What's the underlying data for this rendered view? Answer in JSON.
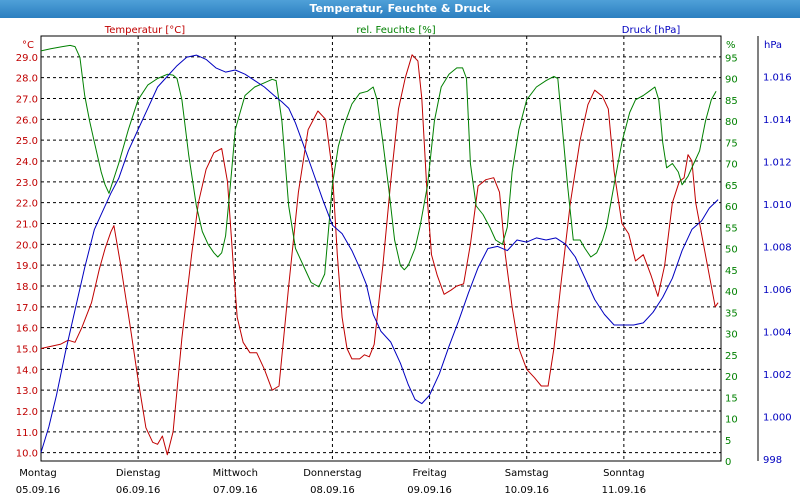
{
  "window": {
    "title": "Temperatur, Feuchte & Druck"
  },
  "chart_data": {
    "type": "line",
    "title": "Temperatur, Feuchte & Druck",
    "x_categories": [
      {
        "day": "Montag",
        "date": "05.09.16"
      },
      {
        "day": "Dienstag",
        "date": "06.09.16"
      },
      {
        "day": "Mittwoch",
        "date": "07.09.16"
      },
      {
        "day": "Donnerstag",
        "date": "08.09.16"
      },
      {
        "day": "Freitag",
        "date": "09.09.16"
      },
      {
        "day": "Samstag",
        "date": "10.09.16"
      },
      {
        "day": "Sonntag",
        "date": "11.09.16"
      }
    ],
    "x_unit": "days since Montag 05.09.16 00:00",
    "xlim": [
      0,
      7
    ],
    "grid": true,
    "axes": {
      "temp": {
        "label": "Temperatur [°C]",
        "unit": "°C",
        "ylim": [
          9.6,
          30.0
        ],
        "color": "#c00000",
        "ticks": [
          "10.0",
          "11.0",
          "12.0",
          "13.0",
          "14.0",
          "15.0",
          "16.0",
          "17.0",
          "18.0",
          "19.0",
          "20.0",
          "21.0",
          "22.0",
          "23.0",
          "24.0",
          "25.0",
          "26.0",
          "27.0",
          "28.0",
          "29.0"
        ]
      },
      "hum": {
        "label": "rel. Feuchte [%]",
        "unit": "%",
        "ylim": [
          0,
          100
        ],
        "color": "#008000",
        "ticks": [
          "0",
          "5",
          "10",
          "15",
          "20",
          "25",
          "30",
          "35",
          "40",
          "45",
          "50",
          "55",
          "60",
          "65",
          "70",
          "75",
          "80",
          "85",
          "90",
          "95"
        ]
      },
      "pres": {
        "label": "Druck [hPa]",
        "unit": "hPa",
        "ylim": [
          997.9,
          1017.9
        ],
        "color": "#0000c0",
        "ticks": [
          "998",
          "1.000",
          "1.002",
          "1.004",
          "1.006",
          "1.008",
          "1.010",
          "1.012",
          "1.014",
          "1.016"
        ]
      }
    },
    "series": [
      {
        "name": "Temperatur [°C]",
        "axis": "temp",
        "color": "#c00000",
        "points": [
          [
            0.0,
            15.0
          ],
          [
            0.2,
            15.2
          ],
          [
            0.28,
            15.4
          ],
          [
            0.35,
            15.3
          ],
          [
            0.42,
            16.0
          ],
          [
            0.52,
            17.2
          ],
          [
            0.6,
            18.8
          ],
          [
            0.66,
            19.8
          ],
          [
            0.72,
            20.6
          ],
          [
            0.75,
            20.9
          ],
          [
            0.82,
            19.0
          ],
          [
            0.92,
            16.0
          ],
          [
            1.0,
            13.5
          ],
          [
            1.08,
            11.2
          ],
          [
            1.15,
            10.5
          ],
          [
            1.2,
            10.4
          ],
          [
            1.25,
            10.8
          ],
          [
            1.3,
            9.9
          ],
          [
            1.36,
            11.0
          ],
          [
            1.45,
            15.5
          ],
          [
            1.55,
            19.5
          ],
          [
            1.62,
            22.0
          ],
          [
            1.7,
            23.6
          ],
          [
            1.78,
            24.4
          ],
          [
            1.86,
            24.6
          ],
          [
            1.92,
            23.0
          ],
          [
            1.98,
            19.0
          ],
          [
            2.02,
            16.5
          ],
          [
            2.08,
            15.3
          ],
          [
            2.15,
            14.8
          ],
          [
            2.22,
            14.8
          ],
          [
            2.3,
            14.0
          ],
          [
            2.38,
            13.0
          ],
          [
            2.45,
            13.2
          ],
          [
            2.55,
            18.0
          ],
          [
            2.65,
            22.5
          ],
          [
            2.75,
            25.5
          ],
          [
            2.85,
            26.4
          ],
          [
            2.93,
            26.0
          ],
          [
            3.0,
            23.5
          ],
          [
            3.05,
            19.5
          ],
          [
            3.1,
            16.5
          ],
          [
            3.15,
            15.0
          ],
          [
            3.2,
            14.5
          ],
          [
            3.28,
            14.5
          ],
          [
            3.33,
            14.7
          ],
          [
            3.38,
            14.6
          ],
          [
            3.43,
            15.2
          ],
          [
            3.52,
            19.0
          ],
          [
            3.6,
            23.0
          ],
          [
            3.68,
            26.5
          ],
          [
            3.75,
            28.0
          ],
          [
            3.82,
            29.1
          ],
          [
            3.88,
            28.8
          ],
          [
            3.92,
            27.0
          ],
          [
            3.98,
            22.0
          ],
          [
            4.02,
            19.5
          ],
          [
            4.08,
            18.5
          ],
          [
            4.15,
            17.6
          ],
          [
            4.22,
            17.8
          ],
          [
            4.28,
            18.0
          ],
          [
            4.35,
            18.1
          ],
          [
            4.42,
            20.0
          ],
          [
            4.5,
            22.8
          ],
          [
            4.58,
            23.1
          ],
          [
            4.66,
            23.2
          ],
          [
            4.72,
            22.5
          ],
          [
            4.78,
            19.5
          ],
          [
            4.85,
            17.0
          ],
          [
            4.92,
            15.0
          ],
          [
            5.0,
            14.0
          ],
          [
            5.08,
            13.6
          ],
          [
            5.15,
            13.2
          ],
          [
            5.22,
            13.2
          ],
          [
            5.28,
            15.0
          ],
          [
            5.35,
            18.0
          ],
          [
            5.45,
            22.0
          ],
          [
            5.55,
            25.0
          ],
          [
            5.63,
            26.7
          ],
          [
            5.7,
            27.4
          ],
          [
            5.78,
            27.1
          ],
          [
            5.84,
            26.5
          ],
          [
            5.9,
            23.5
          ],
          [
            5.98,
            21.0
          ],
          [
            6.05,
            20.5
          ],
          [
            6.12,
            19.2
          ],
          [
            6.2,
            19.5
          ],
          [
            6.28,
            18.5
          ],
          [
            6.35,
            17.5
          ],
          [
            6.42,
            19.0
          ],
          [
            6.5,
            22.0
          ],
          [
            6.57,
            23.0
          ],
          [
            6.62,
            23.2
          ],
          [
            6.66,
            24.3
          ],
          [
            6.7,
            24.0
          ],
          [
            6.74,
            22.0
          ],
          [
            6.78,
            21.0
          ],
          [
            6.86,
            19.0
          ],
          [
            6.94,
            17.0
          ],
          [
            6.97,
            17.2
          ]
        ]
      },
      {
        "name": "rel. Feuchte [%]",
        "axis": "hum",
        "color": "#008000",
        "points": [
          [
            0.0,
            96.5
          ],
          [
            0.1,
            97.0
          ],
          [
            0.22,
            97.5
          ],
          [
            0.3,
            97.8
          ],
          [
            0.35,
            97.5
          ],
          [
            0.4,
            95.0
          ],
          [
            0.45,
            86.0
          ],
          [
            0.5,
            80.0
          ],
          [
            0.55,
            75.0
          ],
          [
            0.58,
            72.0
          ],
          [
            0.62,
            68.0
          ],
          [
            0.66,
            65.0
          ],
          [
            0.7,
            63.0
          ],
          [
            0.8,
            70.0
          ],
          [
            0.9,
            78.0
          ],
          [
            1.0,
            85.0
          ],
          [
            1.1,
            88.5
          ],
          [
            1.2,
            90.0
          ],
          [
            1.3,
            91.0
          ],
          [
            1.36,
            90.8
          ],
          [
            1.4,
            90.0
          ],
          [
            1.45,
            85.0
          ],
          [
            1.52,
            72.0
          ],
          [
            1.6,
            60.0
          ],
          [
            1.66,
            54.0
          ],
          [
            1.72,
            51.0
          ],
          [
            1.78,
            49.0
          ],
          [
            1.82,
            48.0
          ],
          [
            1.86,
            49.0
          ],
          [
            1.9,
            53.0
          ],
          [
            1.95,
            65.0
          ],
          [
            2.0,
            78.0
          ],
          [
            2.05,
            82.0
          ],
          [
            2.1,
            86.0
          ],
          [
            2.2,
            88.0
          ],
          [
            2.3,
            89.0
          ],
          [
            2.38,
            89.8
          ],
          [
            2.42,
            89.5
          ],
          [
            2.48,
            80.0
          ],
          [
            2.55,
            60.0
          ],
          [
            2.62,
            50.0
          ],
          [
            2.7,
            46.0
          ],
          [
            2.78,
            42.0
          ],
          [
            2.86,
            41.0
          ],
          [
            2.92,
            44.0
          ],
          [
            3.0,
            65.0
          ],
          [
            3.06,
            74.0
          ],
          [
            3.12,
            79.0
          ],
          [
            3.2,
            84.0
          ],
          [
            3.28,
            86.5
          ],
          [
            3.36,
            87.0
          ],
          [
            3.42,
            88.0
          ],
          [
            3.46,
            85.0
          ],
          [
            3.52,
            75.0
          ],
          [
            3.58,
            64.0
          ],
          [
            3.64,
            52.0
          ],
          [
            3.7,
            46.0
          ],
          [
            3.74,
            45.0
          ],
          [
            3.78,
            46.0
          ],
          [
            3.85,
            50.0
          ],
          [
            3.9,
            55.0
          ],
          [
            3.98,
            65.0
          ],
          [
            4.05,
            80.0
          ],
          [
            4.12,
            88.0
          ],
          [
            4.2,
            91.0
          ],
          [
            4.28,
            92.5
          ],
          [
            4.34,
            92.5
          ],
          [
            4.38,
            90.0
          ],
          [
            4.42,
            70.0
          ],
          [
            4.48,
            60.0
          ],
          [
            4.55,
            58.0
          ],
          [
            4.62,
            55.0
          ],
          [
            4.68,
            52.0
          ],
          [
            4.75,
            51.0
          ],
          [
            4.8,
            55.0
          ],
          [
            4.85,
            68.0
          ],
          [
            4.92,
            78.0
          ],
          [
            5.0,
            85.0
          ],
          [
            5.1,
            88.0
          ],
          [
            5.2,
            89.5
          ],
          [
            5.28,
            90.5
          ],
          [
            5.32,
            90.0
          ],
          [
            5.36,
            80.0
          ],
          [
            5.42,
            65.0
          ],
          [
            5.48,
            52.0
          ],
          [
            5.55,
            52.0
          ],
          [
            5.6,
            50.0
          ],
          [
            5.66,
            48.0
          ],
          [
            5.72,
            49.0
          ],
          [
            5.78,
            52.0
          ],
          [
            5.82,
            55.0
          ],
          [
            5.9,
            65.0
          ],
          [
            5.98,
            75.0
          ],
          [
            6.06,
            82.0
          ],
          [
            6.12,
            85.0
          ],
          [
            6.2,
            86.0
          ],
          [
            6.26,
            87.0
          ],
          [
            6.32,
            88.0
          ],
          [
            6.36,
            85.0
          ],
          [
            6.4,
            75.0
          ],
          [
            6.44,
            69.0
          ],
          [
            6.5,
            70.0
          ],
          [
            6.56,
            68.0
          ],
          [
            6.6,
            65.0
          ],
          [
            6.66,
            67.0
          ],
          [
            6.72,
            70.0
          ],
          [
            6.78,
            73.0
          ],
          [
            6.84,
            80.0
          ],
          [
            6.9,
            85.0
          ],
          [
            6.95,
            87.0
          ]
        ]
      },
      {
        "name": "Druck [hPa]",
        "axis": "pres",
        "color": "#0000c0",
        "points": [
          [
            0.0,
            998.3
          ],
          [
            0.08,
            999.5
          ],
          [
            0.16,
            1001.0
          ],
          [
            0.25,
            1003.0
          ],
          [
            0.35,
            1005.0
          ],
          [
            0.45,
            1007.0
          ],
          [
            0.55,
            1008.8
          ],
          [
            0.65,
            1009.8
          ],
          [
            0.72,
            1010.5
          ],
          [
            0.8,
            1011.2
          ],
          [
            0.9,
            1012.5
          ],
          [
            1.0,
            1013.5
          ],
          [
            1.1,
            1014.5
          ],
          [
            1.2,
            1015.5
          ],
          [
            1.3,
            1016.0
          ],
          [
            1.4,
            1016.5
          ],
          [
            1.5,
            1016.9
          ],
          [
            1.6,
            1017.0
          ],
          [
            1.7,
            1016.8
          ],
          [
            1.8,
            1016.4
          ],
          [
            1.9,
            1016.2
          ],
          [
            2.0,
            1016.3
          ],
          [
            2.1,
            1016.1
          ],
          [
            2.2,
            1015.8
          ],
          [
            2.3,
            1015.5
          ],
          [
            2.4,
            1015.1
          ],
          [
            2.48,
            1014.8
          ],
          [
            2.55,
            1014.5
          ],
          [
            2.62,
            1013.8
          ],
          [
            2.7,
            1012.8
          ],
          [
            2.8,
            1011.5
          ],
          [
            2.9,
            1010.2
          ],
          [
            3.0,
            1009.0
          ],
          [
            3.1,
            1008.6
          ],
          [
            3.2,
            1007.8
          ],
          [
            3.28,
            1007.0
          ],
          [
            3.35,
            1006.2
          ],
          [
            3.42,
            1004.8
          ],
          [
            3.5,
            1004.0
          ],
          [
            3.6,
            1003.5
          ],
          [
            3.7,
            1002.5
          ],
          [
            3.78,
            1001.5
          ],
          [
            3.85,
            1000.8
          ],
          [
            3.92,
            1000.6
          ],
          [
            4.0,
            1001.0
          ],
          [
            4.1,
            1002.0
          ],
          [
            4.2,
            1003.3
          ],
          [
            4.3,
            1004.5
          ],
          [
            4.4,
            1005.8
          ],
          [
            4.5,
            1007.0
          ],
          [
            4.6,
            1007.9
          ],
          [
            4.7,
            1008.0
          ],
          [
            4.8,
            1007.8
          ],
          [
            4.9,
            1008.3
          ],
          [
            5.0,
            1008.2
          ],
          [
            5.1,
            1008.4
          ],
          [
            5.2,
            1008.3
          ],
          [
            5.3,
            1008.4
          ],
          [
            5.4,
            1008.1
          ],
          [
            5.5,
            1007.5
          ],
          [
            5.6,
            1006.5
          ],
          [
            5.7,
            1005.5
          ],
          [
            5.8,
            1004.8
          ],
          [
            5.9,
            1004.3
          ],
          [
            6.0,
            1004.3
          ],
          [
            6.1,
            1004.3
          ],
          [
            6.2,
            1004.4
          ],
          [
            6.3,
            1004.9
          ],
          [
            6.4,
            1005.6
          ],
          [
            6.5,
            1006.5
          ],
          [
            6.6,
            1007.8
          ],
          [
            6.7,
            1008.8
          ],
          [
            6.8,
            1009.2
          ],
          [
            6.88,
            1009.8
          ],
          [
            6.97,
            1010.2
          ]
        ]
      }
    ]
  }
}
